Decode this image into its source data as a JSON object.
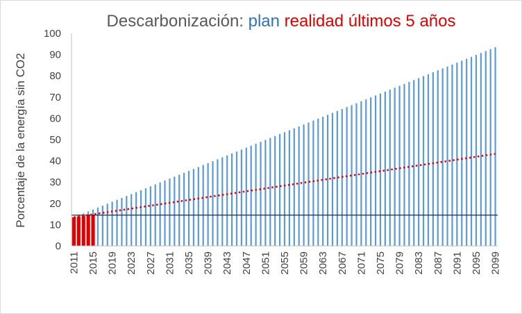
{
  "chart_data": {
    "type": "bar",
    "title_parts": [
      {
        "text": "Descarbonización: ",
        "color": "#595959"
      },
      {
        "text": "plan ",
        "color": "#2e75b6"
      },
      {
        "text": "realidad últimos 5 años",
        "color": "#e00000"
      }
    ],
    "xlabel": "",
    "ylabel": "Porcentaje de la energía sin CO2",
    "ylim": [
      0,
      100
    ],
    "yticks": [
      0,
      10,
      20,
      30,
      40,
      50,
      60,
      70,
      80,
      90,
      100
    ],
    "x_start_year": 2011,
    "x_end_year": 2099,
    "xtick_labels": [
      "2011",
      "2015",
      "2019",
      "2023",
      "2027",
      "2031",
      "2035",
      "2039",
      "2043",
      "2047",
      "2051",
      "2055",
      "2059",
      "2063",
      "2067",
      "2071",
      "2075",
      "2079",
      "2083",
      "2087",
      "2091",
      "2095",
      "2099"
    ],
    "series": [
      {
        "name": "plan",
        "color": "#5b9bd5",
        "x_first": 2011,
        "x_last": 2099,
        "value_first": 13.5,
        "value_last": 93.5
      },
      {
        "name": "realidad últimos 5 años",
        "color": "#e00000",
        "categories": [
          2011,
          2012,
          2013,
          2014,
          2015
        ],
        "values": [
          13.5,
          13.8,
          14.1,
          14.4,
          14.7
        ]
      }
    ],
    "trendline": {
      "style": "dotted",
      "color": "#e00000",
      "x_first": 2011,
      "x_last": 2099,
      "value_first": 13.5,
      "value_last": 43.3
    },
    "reference_line": {
      "color": "#1f2a5c",
      "value": 14.5,
      "x_first": 2011,
      "x_last": 2099
    },
    "grid": false,
    "legend": "none"
  }
}
